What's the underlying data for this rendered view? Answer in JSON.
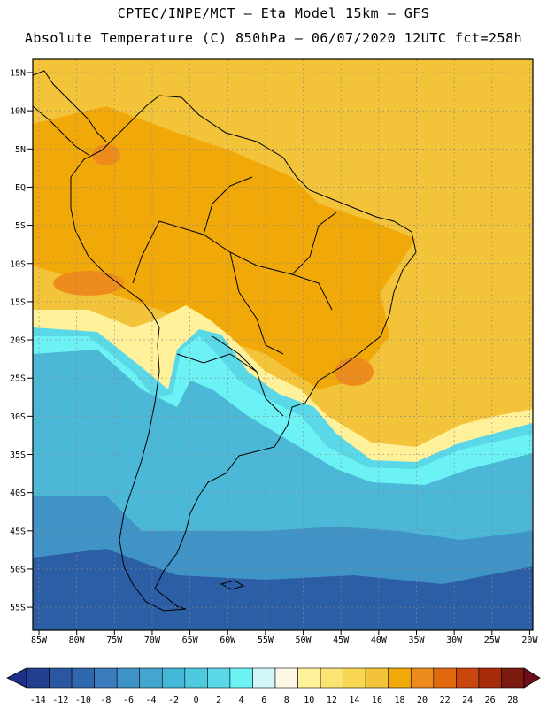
{
  "header": {
    "line1": "CPTEC/INPE/MCT –  Eta Model 15km – GFS",
    "line2": "Absolute Temperature (C) 850hPa – 06/07/2020 12UTC fct=258h"
  },
  "axes": {
    "lat_labels": [
      "15N",
      "10N",
      "5N",
      "EQ",
      "5S",
      "10S",
      "15S",
      "20S",
      "25S",
      "30S",
      "35S",
      "40S",
      "45S",
      "50S",
      "55S"
    ],
    "lon_labels": [
      "85W",
      "80W",
      "75W",
      "70W",
      "65W",
      "60W",
      "55W",
      "50W",
      "45W",
      "40W",
      "35W",
      "30W",
      "25W",
      "20W"
    ]
  },
  "colorbar": {
    "labels": [
      "-14",
      "-12",
      "-10",
      "-8",
      "-6",
      "-4",
      "-2",
      "0",
      "2",
      "4",
      "6",
      "8",
      "10",
      "12",
      "14",
      "16",
      "18",
      "20",
      "22",
      "24",
      "26",
      "28"
    ],
    "colors": [
      "#22408e",
      "#2a56a2",
      "#3068ae",
      "#3a7cbc",
      "#3f92c6",
      "#42a6cf",
      "#45b8d8",
      "#4ecae0",
      "#5ad8e8",
      "#6cf2f4",
      "#d2f6fa",
      "#fff8e6",
      "#fff09a",
      "#fbe474",
      "#f7d652",
      "#f3c43a",
      "#f1a90a",
      "#ed8c1c",
      "#e26a0e",
      "#c9460e",
      "#a82c0c",
      "#7c1a10"
    ]
  },
  "field": {
    "colors": {
      "ocean_far_south": "#2c5ea6",
      "ocean_south": "#3f93c6",
      "ocean_mid": "#4ab8d6",
      "cold_front": "#5ad8e8",
      "cold_core": "#6cf2f4",
      "transition": "#fff09a",
      "warm_ocean": "#f3c43a",
      "warm_land": "#f1a90a",
      "hot_spot": "#ed8c1c"
    }
  }
}
